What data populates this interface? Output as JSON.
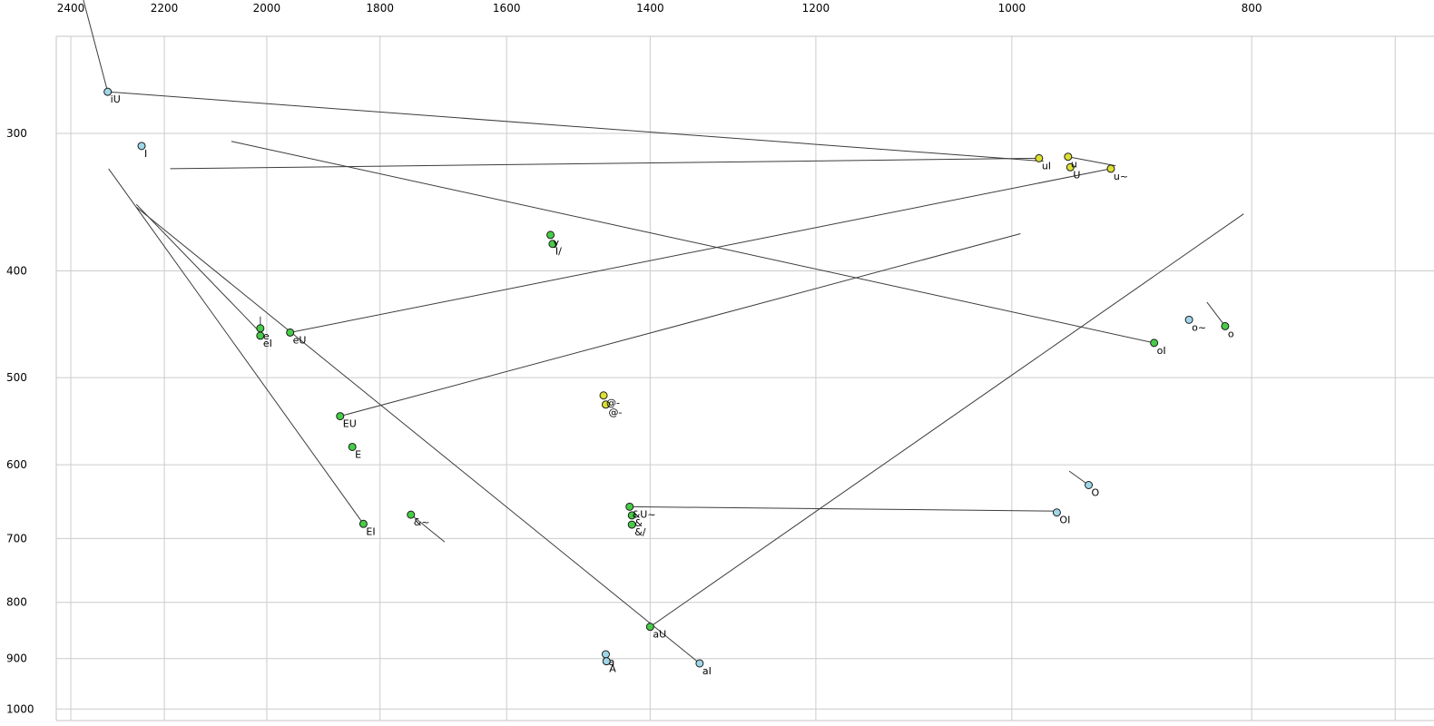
{
  "chart_data": {
    "type": "scatter",
    "title": "",
    "description": "Vowel formant plot (F2 decreasing left-to-right on top axis, F1 increasing downward on left axis, log-log scales) with diphthong trajectory lines",
    "x_axis": {
      "position": "top",
      "scale": "log",
      "reversed": true,
      "ticks": [
        2400,
        2200,
        2000,
        1800,
        1600,
        1400,
        1200,
        1000,
        800
      ],
      "grid_only_ticks": [
        700
      ]
    },
    "y_axis": {
      "position": "left",
      "scale": "log",
      "reversed": true,
      "ticks": [
        300,
        400,
        500,
        600,
        700,
        800,
        900,
        1000
      ]
    },
    "grid": true,
    "points": [
      {
        "label": "iU",
        "f2": 2319,
        "f1": 275,
        "color": "cyan"
      },
      {
        "label": "I",
        "f2": 2247,
        "f1": 308,
        "color": "cyan"
      },
      {
        "label": "uI",
        "f2": 975,
        "f1": 316,
        "color": "yellow"
      },
      {
        "label": "u",
        "f2": 949,
        "f1": 315,
        "color": "yellow"
      },
      {
        "label": "U",
        "f2": 947,
        "f1": 322,
        "color": "yellow"
      },
      {
        "label": "u~",
        "f2": 912,
        "f1": 323,
        "color": "yellow"
      },
      {
        "label": "y",
        "f2": 1536,
        "f1": 371,
        "color": "green"
      },
      {
        "label": "I/",
        "f2": 1533,
        "f1": 378,
        "color": "green"
      },
      {
        "label": "e",
        "f2": 2012,
        "f1": 451,
        "color": "green"
      },
      {
        "label": "eI",
        "f2": 2012,
        "f1": 458,
        "color": "green"
      },
      {
        "label": "eU",
        "f2": 1957,
        "f1": 455,
        "color": "green"
      },
      {
        "label": "EU",
        "f2": 1868,
        "f1": 542,
        "color": "green"
      },
      {
        "label": "E",
        "f2": 1847,
        "f1": 578,
        "color": "green"
      },
      {
        "label": "EI",
        "f2": 1828,
        "f1": 679,
        "color": "green"
      },
      {
        "label": "&~",
        "f2": 1749,
        "f1": 666,
        "color": "green"
      },
      {
        "label": "@-",
        "f2": 1462,
        "f1": 519,
        "color": "yellow"
      },
      {
        "label": "@-",
        "f2": 1459,
        "f1": 529,
        "color": "yellow"
      },
      {
        "label": "&U~",
        "f2": 1427,
        "f1": 655,
        "color": "green"
      },
      {
        "label": "&",
        "f2": 1424,
        "f1": 667,
        "color": "green"
      },
      {
        "label": "&/",
        "f2": 1424,
        "f1": 680,
        "color": "green"
      },
      {
        "label": "aU",
        "f2": 1400,
        "f1": 842,
        "color": "green"
      },
      {
        "label": "a",
        "f2": 1459,
        "f1": 892,
        "color": "cyan"
      },
      {
        "label": "A",
        "f2": 1458,
        "f1": 905,
        "color": "cyan"
      },
      {
        "label": "aI",
        "f2": 1337,
        "f1": 909,
        "color": "cyan"
      },
      {
        "label": "O",
        "f2": 931,
        "f1": 626,
        "color": "cyan"
      },
      {
        "label": "OI",
        "f2": 959,
        "f1": 663,
        "color": "cyan"
      },
      {
        "label": "oI",
        "f2": 876,
        "f1": 465,
        "color": "green"
      },
      {
        "label": "o~",
        "f2": 848,
        "f1": 443,
        "color": "cyan"
      },
      {
        "label": "o",
        "f2": 820,
        "f1": 449,
        "color": "green"
      }
    ],
    "segments": [
      {
        "name": "iU-onset",
        "a": [
          2372,
          227
        ],
        "b": [
          2319,
          275
        ]
      },
      {
        "name": "iU-trajectory",
        "a": [
          2319,
          275
        ],
        "b": [
          971,
          318
        ]
      },
      {
        "name": "uI-trajectory",
        "a": [
          2188,
          323
        ],
        "b": [
          975,
          316
        ]
      },
      {
        "name": "u-trajectory",
        "a": [
          949,
          315
        ],
        "b": [
          908,
          321
        ]
      },
      {
        "name": "oI-trajectory",
        "a": [
          2067,
          305
        ],
        "b": [
          876,
          465
        ]
      },
      {
        "name": "eI-trajectory",
        "a": [
          2258,
          348
        ],
        "b": [
          2012,
          455
        ]
      },
      {
        "name": "eU-trajectory",
        "a": [
          1957,
          455
        ],
        "b": [
          912,
          323
        ]
      },
      {
        "name": "EU-trajectory",
        "a": [
          1868,
          542
        ],
        "b": [
          992,
          370
        ]
      },
      {
        "name": "EI-trajectory",
        "a": [
          2317,
          323
        ],
        "b": [
          1828,
          679
        ]
      },
      {
        "name": "aI-trajectory",
        "a": [
          2258,
          350
        ],
        "b": [
          1337,
          909
        ]
      },
      {
        "name": "aU-trajectory",
        "a": [
          1400,
          842
        ],
        "b": [
          806,
          355
        ]
      },
      {
        "name": "&U~-trajectory",
        "a": [
          1427,
          655
        ],
        "b": [
          962,
          661
        ]
      },
      {
        "name": "O-trajectory",
        "a": [
          948,
          608
        ],
        "b": [
          931,
          626
        ]
      },
      {
        "name": "o-trajectory",
        "a": [
          834,
          427
        ],
        "b": [
          820,
          449
        ]
      },
      {
        "name": "&~-trajectory",
        "a": [
          1749,
          666
        ],
        "b": [
          1695,
          705
        ]
      },
      {
        "name": "e-trajectory",
        "a": [
          2012,
          440
        ],
        "b": [
          2012,
          451
        ]
      }
    ],
    "colors": {
      "cyan": "#9fd7e8",
      "green": "#46cc46",
      "yellow": "#dde032",
      "point_stroke": "#1c1c1c",
      "grid": "#cccccc",
      "frame": "#c4c4c4",
      "line": "#3c3c3c",
      "text": "#000000"
    }
  }
}
